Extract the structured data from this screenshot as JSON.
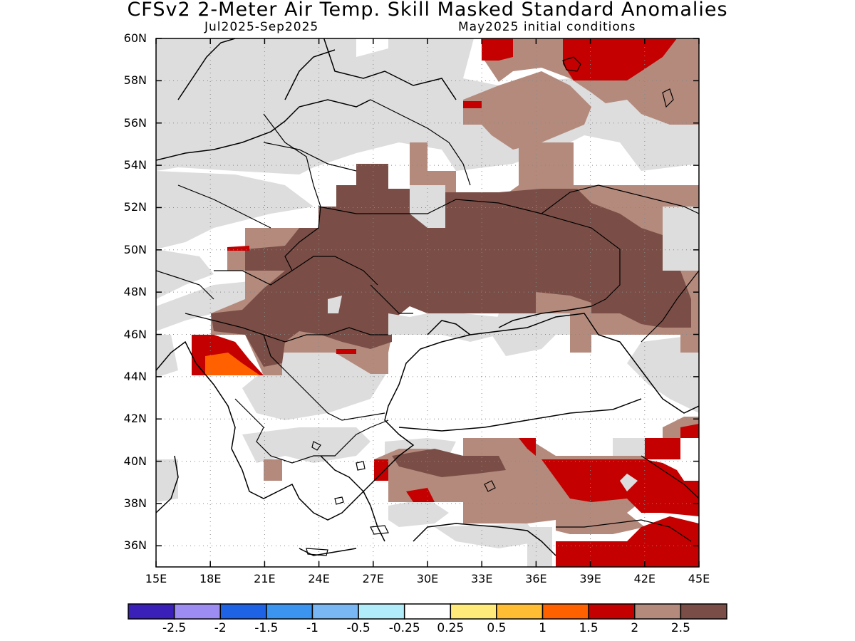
{
  "title": "CFSv2 2-Meter Air Temp. Skill Masked Standard Anomalies",
  "subtitle_left": "Jul2025-Sep2025",
  "subtitle_right": "May2025 initial conditions",
  "map": {
    "lat_range": [
      35,
      60
    ],
    "lon_range": [
      15,
      45
    ],
    "lat_labels": [
      "60N",
      "58N",
      "56N",
      "54N",
      "52N",
      "50N",
      "48N",
      "46N",
      "44N",
      "42N",
      "40N",
      "38N",
      "36N"
    ],
    "lon_labels": [
      "15E",
      "18E",
      "21E",
      "24E",
      "27E",
      "30E",
      "33E",
      "36E",
      "39E",
      "42E",
      "45E"
    ]
  },
  "colorbar": {
    "colors": [
      "#3a1fb8",
      "#9d8cf2",
      "#1e63e6",
      "#3b95f0",
      "#78b6f4",
      "#b1ecfa",
      "#ffffff",
      "#ffea7a",
      "#ffbd33",
      "#ff6000",
      "#c40000",
      "#b48a7c",
      "#7a4e46"
    ],
    "labels": [
      "-2.5",
      "-2",
      "-1.5",
      "-1",
      "-0.5",
      "-0.25",
      "0.25",
      "0.5",
      "1",
      "1.5",
      "2",
      "2.5"
    ]
  },
  "legend_colors": {
    "no_skill": "#dddddd",
    "brown_light": "#b48a7c",
    "brown_dark": "#7a4e46",
    "red": "#c40000",
    "orange": "#ff6000",
    "coastline": "#000000"
  }
}
